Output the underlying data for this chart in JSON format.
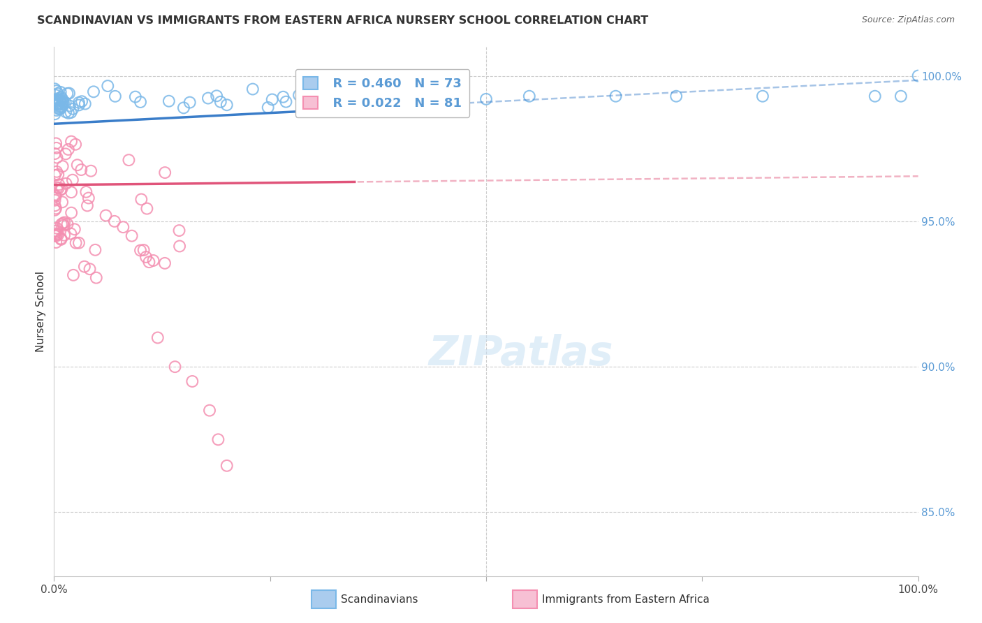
{
  "title": "SCANDINAVIAN VS IMMIGRANTS FROM EASTERN AFRICA NURSERY SCHOOL CORRELATION CHART",
  "source": "Source: ZipAtlas.com",
  "ylabel": "Nursery School",
  "ytick_labels": [
    "100.0%",
    "95.0%",
    "90.0%",
    "85.0%"
  ],
  "ytick_values": [
    1.0,
    0.95,
    0.9,
    0.85
  ],
  "xmin": 0.0,
  "xmax": 1.0,
  "ymin": 0.828,
  "ymax": 1.01,
  "legend_r1": "R = 0.460",
  "legend_n1": "N = 73",
  "legend_r2": "R = 0.022",
  "legend_n2": "N = 81",
  "blue_scatter_color": "#7ab8e8",
  "pink_scatter_color": "#f48fb1",
  "blue_line_color": "#3a7dc9",
  "pink_line_color": "#e0547a",
  "legend_box_color": "#dddddd",
  "grid_color": "#cccccc",
  "right_tick_color": "#5b9bd5",
  "watermark_color": "#c8e0f4"
}
